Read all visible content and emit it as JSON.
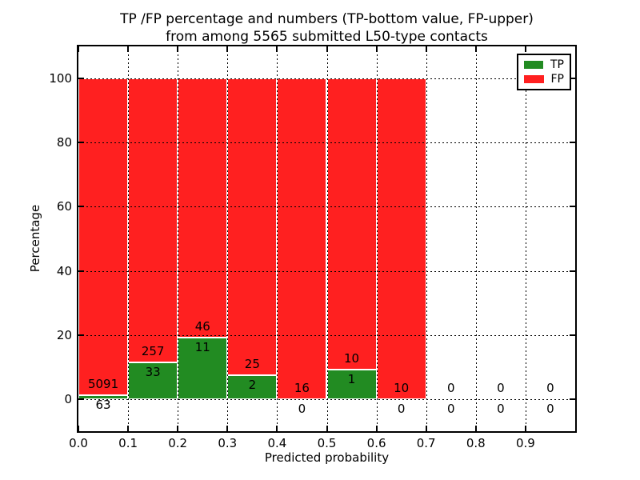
{
  "chart_data": {
    "type": "bar",
    "stacked": true,
    "title": "TP /FP percentage and numbers (TP-bottom value, FP-upper)\nfrom among 5565 submitted L50-type contacts",
    "title_lines": [
      "TP /FP percentage and numbers (TP-bottom value, FP-upper)",
      "from among 5565 submitted L50-type contacts"
    ],
    "total_submitted": 5565,
    "xlabel": "Predicted probability",
    "ylabel": "Percentage",
    "xlim": [
      0.0,
      1.0
    ],
    "ylim": [
      -10,
      110
    ],
    "x_ticks": [
      {
        "value": 0.0,
        "label": "0.0"
      },
      {
        "value": 0.1,
        "label": "0.1"
      },
      {
        "value": 0.2,
        "label": "0.2"
      },
      {
        "value": 0.3,
        "label": "0.3"
      },
      {
        "value": 0.4,
        "label": "0.4"
      },
      {
        "value": 0.5,
        "label": "0.5"
      },
      {
        "value": 0.6,
        "label": "0.6"
      },
      {
        "value": 0.7,
        "label": "0.7"
      },
      {
        "value": 0.8,
        "label": "0.8"
      },
      {
        "value": 0.9,
        "label": "0.9"
      }
    ],
    "y_ticks": [
      {
        "value": 0,
        "label": "0"
      },
      {
        "value": 20,
        "label": "20"
      },
      {
        "value": 40,
        "label": "40"
      },
      {
        "value": 60,
        "label": "60"
      },
      {
        "value": 80,
        "label": "80"
      },
      {
        "value": 100,
        "label": "100"
      }
    ],
    "x_gridlines": [
      0.1,
      0.2,
      0.3,
      0.4,
      0.5,
      0.6,
      0.7,
      0.8,
      0.9
    ],
    "grid": true,
    "grid_style": "dotted",
    "colors": {
      "tp": "#228B22",
      "fp": "#FF2020",
      "bar_edge": "#FFFFFF",
      "grid": "#000000"
    },
    "legend": {
      "position": "upper right",
      "entries": [
        {
          "label": "TP",
          "color": "#228B22"
        },
        {
          "label": "FP",
          "color": "#FF2020"
        }
      ]
    },
    "bins": [
      {
        "x_start": 0.0,
        "x_end": 0.1,
        "tp_count": 63,
        "fp_count": 5091,
        "tp_pct": 1.22
      },
      {
        "x_start": 0.1,
        "x_end": 0.2,
        "tp_count": 33,
        "fp_count": 257,
        "tp_pct": 11.38
      },
      {
        "x_start": 0.2,
        "x_end": 0.3,
        "tp_count": 11,
        "fp_count": 46,
        "tp_pct": 19.3
      },
      {
        "x_start": 0.3,
        "x_end": 0.4,
        "tp_count": 2,
        "fp_count": 25,
        "tp_pct": 7.41
      },
      {
        "x_start": 0.4,
        "x_end": 0.5,
        "tp_count": 0,
        "fp_count": 16,
        "tp_pct": 0.0
      },
      {
        "x_start": 0.5,
        "x_end": 0.6,
        "tp_count": 1,
        "fp_count": 10,
        "tp_pct": 9.09
      },
      {
        "x_start": 0.6,
        "x_end": 0.7,
        "tp_count": 0,
        "fp_count": 10,
        "tp_pct": 0.0
      },
      {
        "x_start": 0.7,
        "x_end": 0.8,
        "tp_count": 0,
        "fp_count": 0,
        "tp_pct": 0.0
      },
      {
        "x_start": 0.8,
        "x_end": 0.9,
        "tp_count": 0,
        "fp_count": 0,
        "tp_pct": 0.0
      },
      {
        "x_start": 0.9,
        "x_end": 1.0,
        "tp_count": 0,
        "fp_count": 0,
        "tp_pct": 0.0
      }
    ]
  }
}
